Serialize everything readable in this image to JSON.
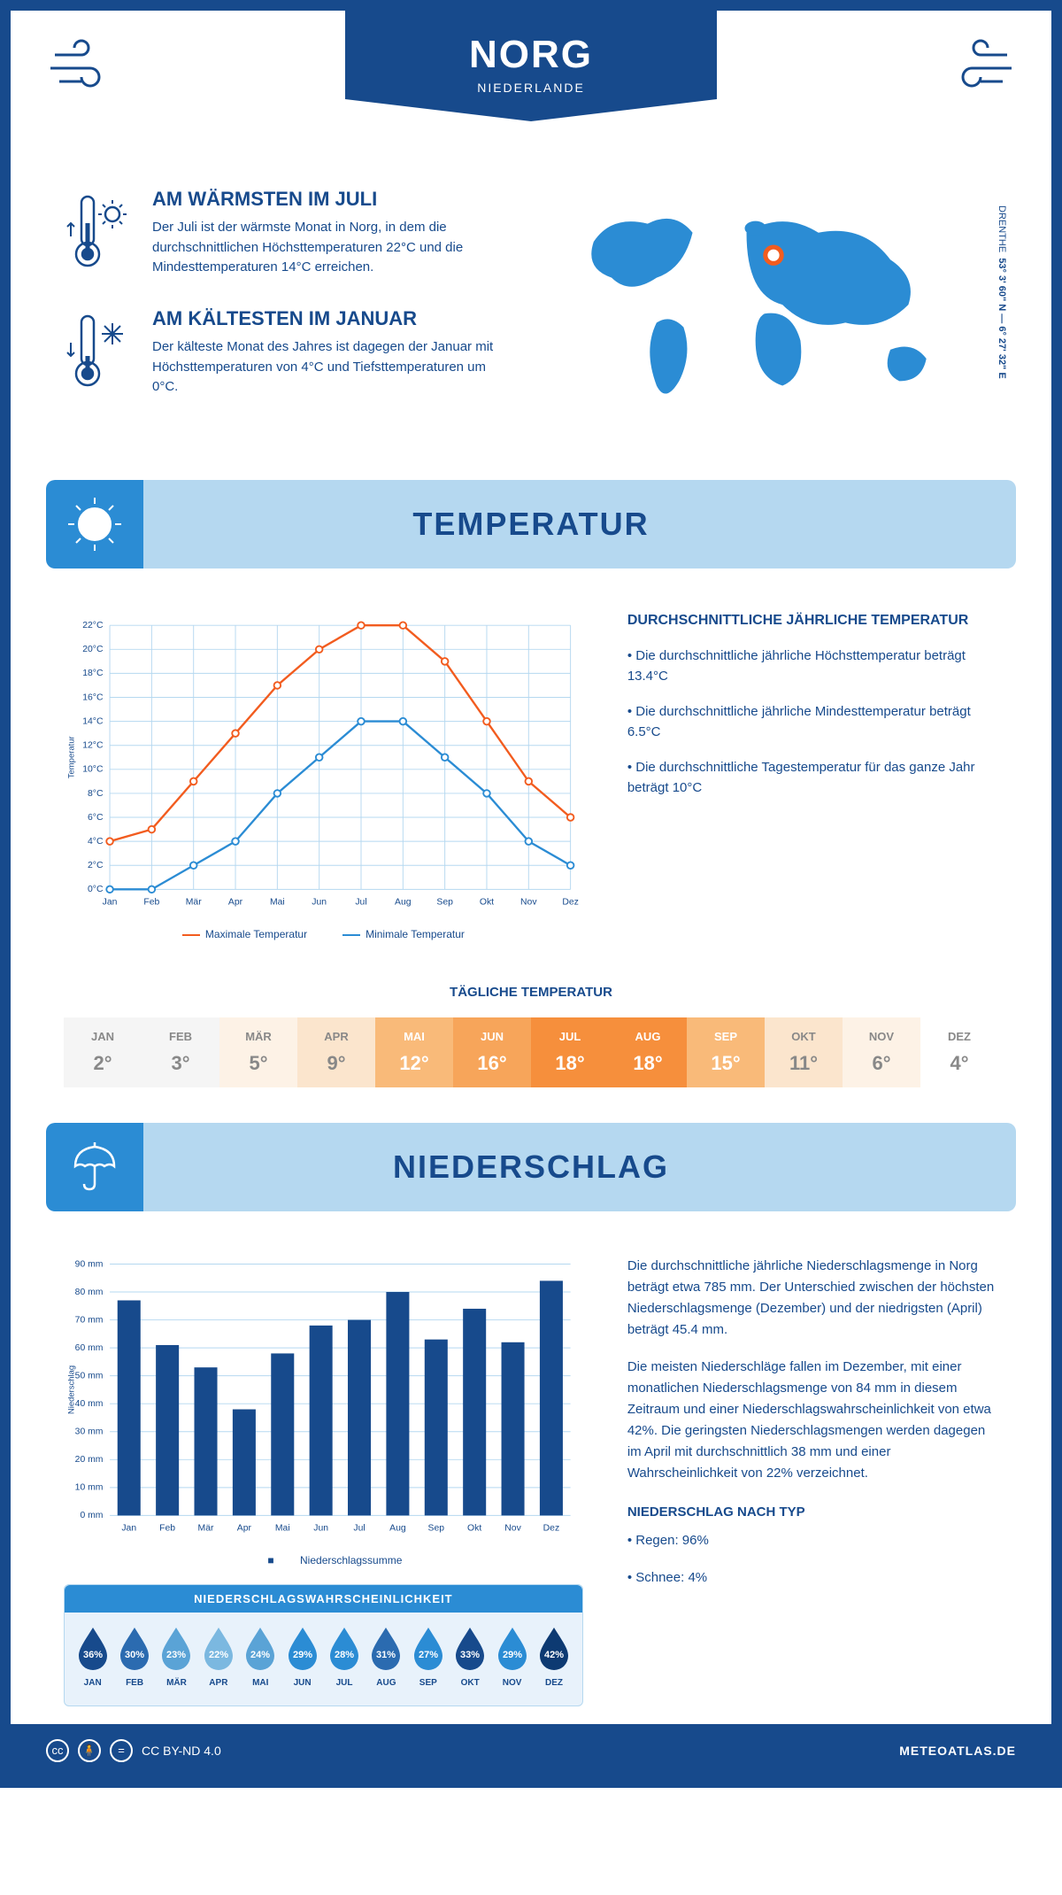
{
  "header": {
    "city": "NORG",
    "country": "NIEDERLANDE"
  },
  "coords": {
    "lat": "53° 3' 60\" N — 6° 27' 32\" E",
    "region": "DRENTHE"
  },
  "warm": {
    "title": "AM WÄRMSTEN IM JULI",
    "text": "Der Juli ist der wärmste Monat in Norg, in dem die durchschnittlichen Höchsttemperaturen 22°C und die Mindesttemperaturen 14°C erreichen."
  },
  "cold": {
    "title": "AM KÄLTESTEN IM JANUAR",
    "text": "Der kälteste Monat des Jahres ist dagegen der Januar mit Höchsttemperaturen von 4°C und Tiefsttemperaturen um 0°C."
  },
  "temp_section": "TEMPERATUR",
  "temp_chart": {
    "type": "line",
    "months": [
      "Jan",
      "Feb",
      "Mär",
      "Apr",
      "Mai",
      "Jun",
      "Jul",
      "Aug",
      "Sep",
      "Okt",
      "Nov",
      "Dez"
    ],
    "max": [
      4,
      5,
      9,
      13,
      17,
      20,
      22,
      22,
      19,
      14,
      9,
      6
    ],
    "min": [
      0,
      0,
      2,
      4,
      8,
      11,
      14,
      14,
      11,
      8,
      4,
      2
    ],
    "ylim": [
      0,
      22
    ],
    "ytick_step": 2,
    "ylabel": "Temperatur",
    "max_color": "#f25c1f",
    "min_color": "#2b8cd4",
    "grid_color": "#b5d8f0",
    "bg": "#ffffff",
    "legend_max": "Maximale Temperatur",
    "legend_min": "Minimale Temperatur"
  },
  "temp_stats": {
    "title": "DURCHSCHNITTLICHE JÄHRLICHE TEMPERATUR",
    "p1": "• Die durchschnittliche jährliche Höchsttemperatur beträgt 13.4°C",
    "p2": "• Die durchschnittliche jährliche Mindesttemperatur beträgt 6.5°C",
    "p3": "• Die durchschnittliche Tagestemperatur für das ganze Jahr beträgt 10°C"
  },
  "daily": {
    "title": "TÄGLICHE TEMPERATUR",
    "months": [
      "JAN",
      "FEB",
      "MÄR",
      "APR",
      "MAI",
      "JUN",
      "JUL",
      "AUG",
      "SEP",
      "OKT",
      "NOV",
      "DEZ"
    ],
    "values": [
      "2°",
      "3°",
      "5°",
      "9°",
      "12°",
      "16°",
      "18°",
      "18°",
      "15°",
      "11°",
      "6°",
      "4°"
    ],
    "bg_colors": [
      "#f5f5f5",
      "#f5f5f5",
      "#fdf2e6",
      "#fbe5cd",
      "#f9ba79",
      "#f7a55a",
      "#f68f3c",
      "#f68f3c",
      "#f9ba79",
      "#fbe5cd",
      "#fdf2e6",
      "#ffffff"
    ],
    "text_colors": [
      "#888",
      "#888",
      "#888",
      "#888",
      "#fff",
      "#fff",
      "#fff",
      "#fff",
      "#fff",
      "#888",
      "#888",
      "#888"
    ]
  },
  "precip_section": "NIEDERSCHLAG",
  "precip_chart": {
    "type": "bar",
    "months": [
      "Jan",
      "Feb",
      "Mär",
      "Apr",
      "Mai",
      "Jun",
      "Jul",
      "Aug",
      "Sep",
      "Okt",
      "Nov",
      "Dez"
    ],
    "values": [
      77,
      61,
      53,
      38,
      58,
      68,
      70,
      80,
      63,
      74,
      62,
      84
    ],
    "ylim": [
      0,
      90
    ],
    "ytick_step": 10,
    "bar_color": "#174a8c",
    "grid_color": "#b5d8f0",
    "ylabel": "Niederschlag",
    "legend": "Niederschlagssumme"
  },
  "precip_text": {
    "p1": "Die durchschnittliche jährliche Niederschlagsmenge in Norg beträgt etwa 785 mm. Der Unterschied zwischen der höchsten Niederschlagsmenge (Dezember) und der niedrigsten (April) beträgt 45.4 mm.",
    "p2": "Die meisten Niederschläge fallen im Dezember, mit einer monatlichen Niederschlagsmenge von 84 mm in diesem Zeitraum und einer Niederschlagswahrscheinlichkeit von etwa 42%. Die geringsten Niederschlagsmengen werden dagegen im April mit durchschnittlich 38 mm und einer Wahrscheinlichkeit von 22% verzeichnet.",
    "type_title": "NIEDERSCHLAG NACH TYP",
    "rain": "• Regen: 96%",
    "snow": "• Schnee: 4%"
  },
  "prob": {
    "title": "NIEDERSCHLAGSWAHRSCHEINLICHKEIT",
    "months": [
      "JAN",
      "FEB",
      "MÄR",
      "APR",
      "MAI",
      "JUN",
      "JUL",
      "AUG",
      "SEP",
      "OKT",
      "NOV",
      "DEZ"
    ],
    "pct": [
      "36%",
      "30%",
      "23%",
      "22%",
      "24%",
      "29%",
      "28%",
      "31%",
      "27%",
      "33%",
      "29%",
      "42%"
    ],
    "colors": [
      "#174a8c",
      "#2b6bb0",
      "#5aa3d6",
      "#7bb8e0",
      "#5aa3d6",
      "#2b8cd4",
      "#2b8cd4",
      "#2b6bb0",
      "#2b8cd4",
      "#174a8c",
      "#2b8cd4",
      "#0d3a72"
    ]
  },
  "footer": {
    "license": "CC BY-ND 4.0",
    "site": "METEOATLAS.DE"
  }
}
